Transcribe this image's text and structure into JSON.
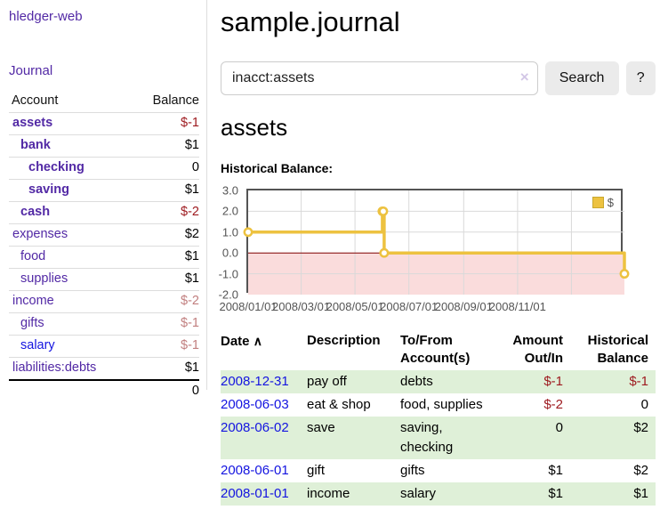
{
  "app": {
    "title": "hledger-web",
    "journal_link": "Journal"
  },
  "sidebar": {
    "headers": {
      "account": "Account",
      "balance": "Balance"
    },
    "accounts": [
      {
        "name": "assets",
        "balance": "$-1"
      },
      {
        "name": "bank",
        "balance": "$1"
      },
      {
        "name": "checking",
        "balance": "0"
      },
      {
        "name": "saving",
        "balance": "$1"
      },
      {
        "name": "cash",
        "balance": "$-2"
      },
      {
        "name": "expenses",
        "balance": "$2"
      },
      {
        "name": "food",
        "balance": "$1"
      },
      {
        "name": "supplies",
        "balance": "$1"
      },
      {
        "name": "income",
        "balance": "$-2"
      },
      {
        "name": "gifts",
        "balance": "$-1"
      },
      {
        "name": "salary",
        "balance": "$-1"
      },
      {
        "name": "liabilities:debts",
        "balance": "$1"
      }
    ],
    "total": "0"
  },
  "header": {
    "title": "sample.journal"
  },
  "search": {
    "value": "inacct:assets",
    "clear_icon": "×",
    "search_button": "Search",
    "help_button": "?"
  },
  "register": {
    "heading": "assets",
    "chart_title": "Historical Balance:",
    "table": {
      "sort_icon": "∧",
      "headers": {
        "date": "Date",
        "description": "Description",
        "accounts": "To/From Account(s)",
        "amount": "Amount Out/In",
        "balance": "Historical Balance"
      },
      "rows": [
        {
          "date": "2008-12-31",
          "description": "pay off",
          "accounts": "debts",
          "amount": "$-1",
          "balance": "$-1"
        },
        {
          "date": "2008-06-03",
          "description": "eat & shop",
          "accounts": "food, supplies",
          "amount": "$-2",
          "balance": "0"
        },
        {
          "date": "2008-06-02",
          "description": "save",
          "accounts": "saving, checking",
          "amount": "0",
          "balance": "$2"
        },
        {
          "date": "2008-06-01",
          "description": "gift",
          "accounts": "gifts",
          "amount": "$1",
          "balance": "$2"
        },
        {
          "date": "2008-01-01",
          "description": "income",
          "accounts": "salary",
          "amount": "$1",
          "balance": "$1"
        }
      ]
    }
  },
  "chart_data": {
    "type": "line",
    "step": true,
    "title": "Historical Balance",
    "series": [
      {
        "name": "$",
        "color": "#edc240",
        "points": [
          [
            "2008-01-01",
            1
          ],
          [
            "2008-06-01",
            2
          ],
          [
            "2008-06-02",
            2
          ],
          [
            "2008-06-03",
            0
          ],
          [
            "2008-12-31",
            -1
          ]
        ]
      }
    ],
    "ylim": [
      -2,
      3
    ],
    "yticks": [
      3.0,
      2.0,
      1.0,
      0.0,
      -1.0,
      -2.0
    ],
    "xticks": [
      {
        "label": "2008/01/01",
        "date": "2008-01-01"
      },
      {
        "label": "2008/03/01",
        "date": "2008-03-01"
      },
      {
        "label": "2008/05/01",
        "date": "2008-05-01"
      },
      {
        "label": "2008/07/01",
        "date": "2008-07-01"
      },
      {
        "label": "2008/09/01",
        "date": "2008-09-01"
      },
      {
        "label": "2008/11/01",
        "date": "2008-11-01"
      }
    ],
    "x_gridline_dates": [
      "2008-03-01",
      "2008-05-01",
      "2008-07-01",
      "2008-09-01",
      "2008-11-01",
      "2009-01-01"
    ],
    "x_range": {
      "start": "2008-01-01",
      "days": 426
    },
    "grid": true,
    "legend": {
      "label": "$",
      "position": "top-right"
    },
    "colors": {
      "line": "#edc240",
      "marker_fill": "#ffffff",
      "negative_fill": "#fadcdc",
      "zero_line": "#800000",
      "grid": "#d9d9d9",
      "border": "#545454",
      "tick_text": "#545454"
    }
  }
}
